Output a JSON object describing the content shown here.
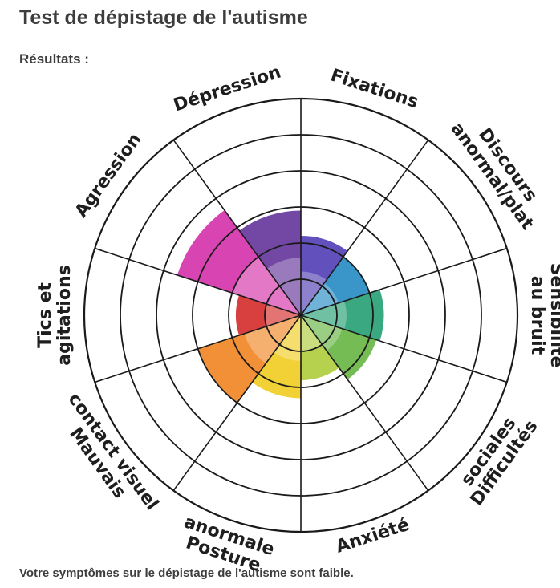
{
  "page": {
    "title": "Test de dépistage de l'autisme",
    "results_label": "Résultats :",
    "footer_text": "Votre symptômes sur le dépistage de l'autisme sont faible."
  },
  "chart_data": {
    "type": "polar-area",
    "title": "",
    "scale_rings": 6,
    "categories": [
      {
        "label": [
          "Fixations"
        ],
        "value": 2.2,
        "color": "#5a48b8"
      },
      {
        "label": [
          "Discours",
          "anormal/plat"
        ],
        "value": 2.0,
        "color": "#2f8fc6"
      },
      {
        "label": [
          "Sensibilité",
          "au bruit"
        ],
        "value": 2.3,
        "color": "#2fa37a"
      },
      {
        "label": [
          "Difficultés",
          "sociales"
        ],
        "value": 2.2,
        "color": "#6db84a"
      },
      {
        "label": [
          "Anxiété"
        ],
        "value": 1.8,
        "color": "#b2cf45"
      },
      {
        "label": [
          "Posture",
          "anormale"
        ],
        "value": 2.3,
        "color": "#f0cf2a"
      },
      {
        "label": [
          "Mauvais",
          "contact visuel"
        ],
        "value": 3.0,
        "color": "#f08a2c"
      },
      {
        "label": [
          "Tics et",
          "agitations"
        ],
        "value": 1.8,
        "color": "#d63535"
      },
      {
        "label": [
          "Agression"
        ],
        "value": 3.6,
        "color": "#d63aae"
      },
      {
        "label": [
          "Dépression"
        ],
        "value": 2.9,
        "color": "#6a3e9f"
      }
    ]
  }
}
